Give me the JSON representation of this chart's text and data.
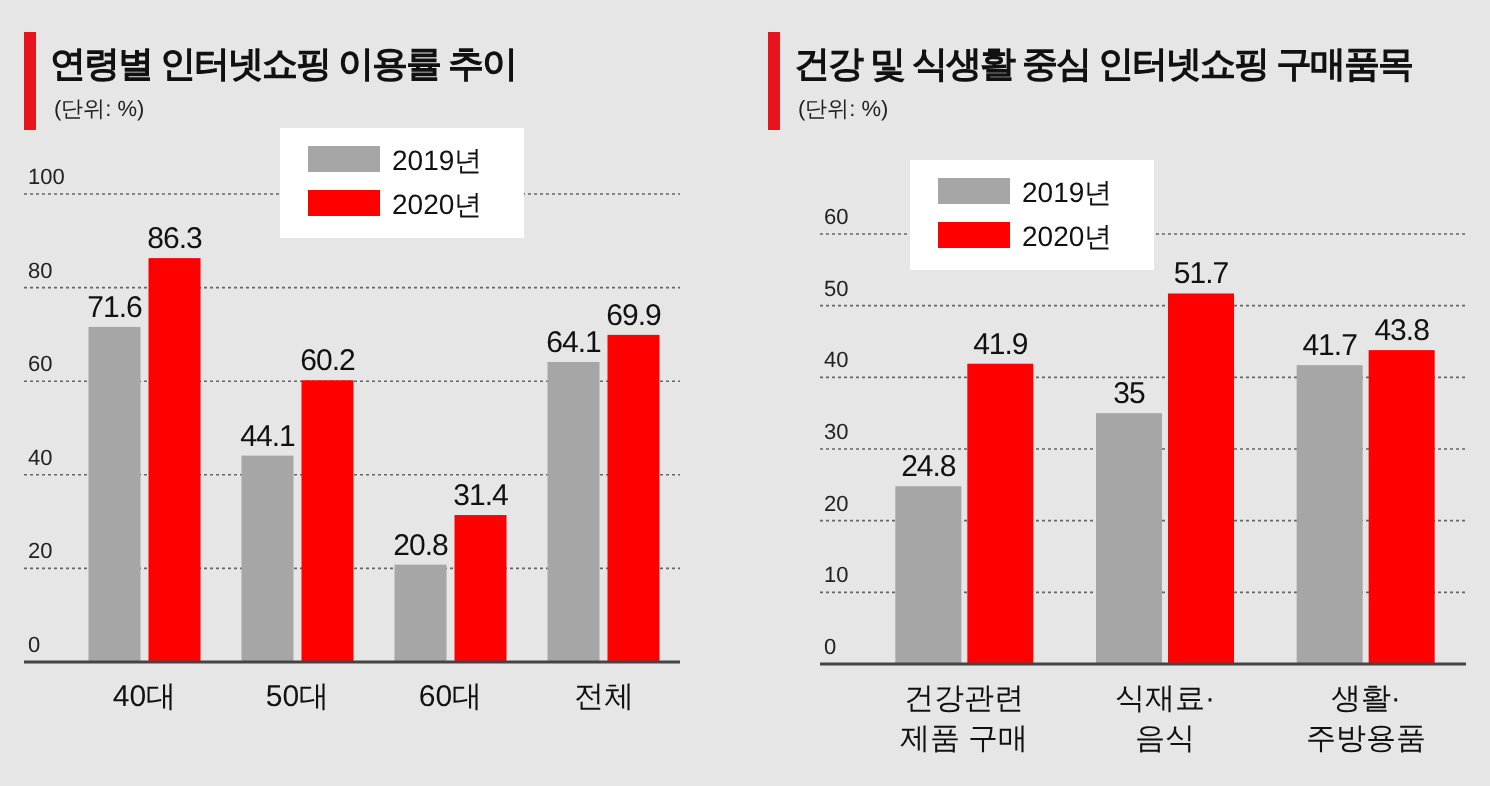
{
  "chart_data": [
    {
      "type": "bar",
      "title": "연령별 인터넷쇼핑 이용률 추이",
      "subtitle": "(단위: %)",
      "categories": [
        "40대",
        "50대",
        "60대",
        "전체"
      ],
      "series": [
        {
          "name": "2019년",
          "color": "#a6a6a6",
          "values": [
            71.6,
            44.1,
            20.8,
            64.1
          ]
        },
        {
          "name": "2020년",
          "color": "#ff0000",
          "values": [
            86.3,
            60.2,
            31.4,
            69.9
          ]
        }
      ],
      "ylim": [
        0,
        100
      ],
      "yticks": [
        0,
        20,
        40,
        60,
        80,
        100
      ],
      "grid": "y",
      "legend": "top",
      "data_labels": true
    },
    {
      "type": "bar",
      "title": "건강 및 식생활 중심 인터넷쇼핑 구매품목",
      "subtitle": "(단위: %)",
      "categories": [
        "건강관련\n제품 구매",
        "식재료·\n음식",
        "생활·\n주방용품"
      ],
      "series": [
        {
          "name": "2019년",
          "color": "#a6a6a6",
          "values": [
            24.8,
            35,
            41.7
          ]
        },
        {
          "name": "2020년",
          "color": "#ff0000",
          "values": [
            41.9,
            51.7,
            43.8
          ]
        }
      ],
      "ylim": [
        0,
        60
      ],
      "yticks": [
        0,
        10,
        20,
        30,
        40,
        50,
        60
      ],
      "grid": "y",
      "legend": "top left",
      "data_labels": true
    }
  ]
}
